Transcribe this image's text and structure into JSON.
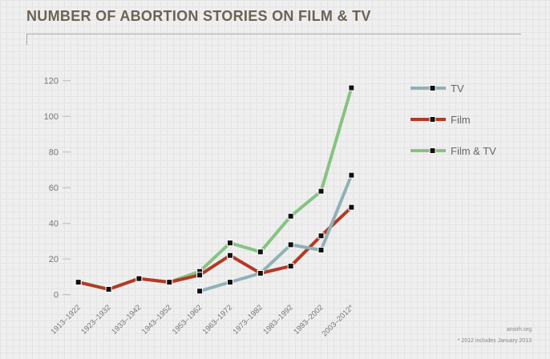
{
  "chart_data": {
    "type": "line",
    "title": "NUMBER OF ABORTION STORIES ON FILM & TV",
    "xlabel": "",
    "ylabel": "",
    "ylim": [
      0,
      120
    ],
    "yticks": [
      "0",
      "20",
      "40",
      "60",
      "80",
      "100",
      "120"
    ],
    "categories": [
      "1913–1922",
      "1923–1932",
      "1933–1942",
      "1943–1952",
      "1953–1962",
      "1963–1972",
      "1973–1982",
      "1983–1992",
      "1993–2002",
      "2003–2012*"
    ],
    "legend_position": "right",
    "series": [
      {
        "name": "TV",
        "color": "#8fb1b6",
        "values": [
          null,
          null,
          null,
          null,
          2,
          7,
          12,
          28,
          25,
          67
        ]
      },
      {
        "name": "Film",
        "color": "#b33a26",
        "values": [
          7,
          3,
          9,
          7,
          11,
          22,
          12,
          16,
          33,
          49
        ]
      },
      {
        "name": "Film & TV",
        "color": "#86c382",
        "values": [
          7,
          3,
          9,
          7,
          13,
          29,
          24,
          44,
          58,
          116
        ]
      }
    ],
    "source": "ansirh.org",
    "note": "* 2012 includes January 2013"
  }
}
